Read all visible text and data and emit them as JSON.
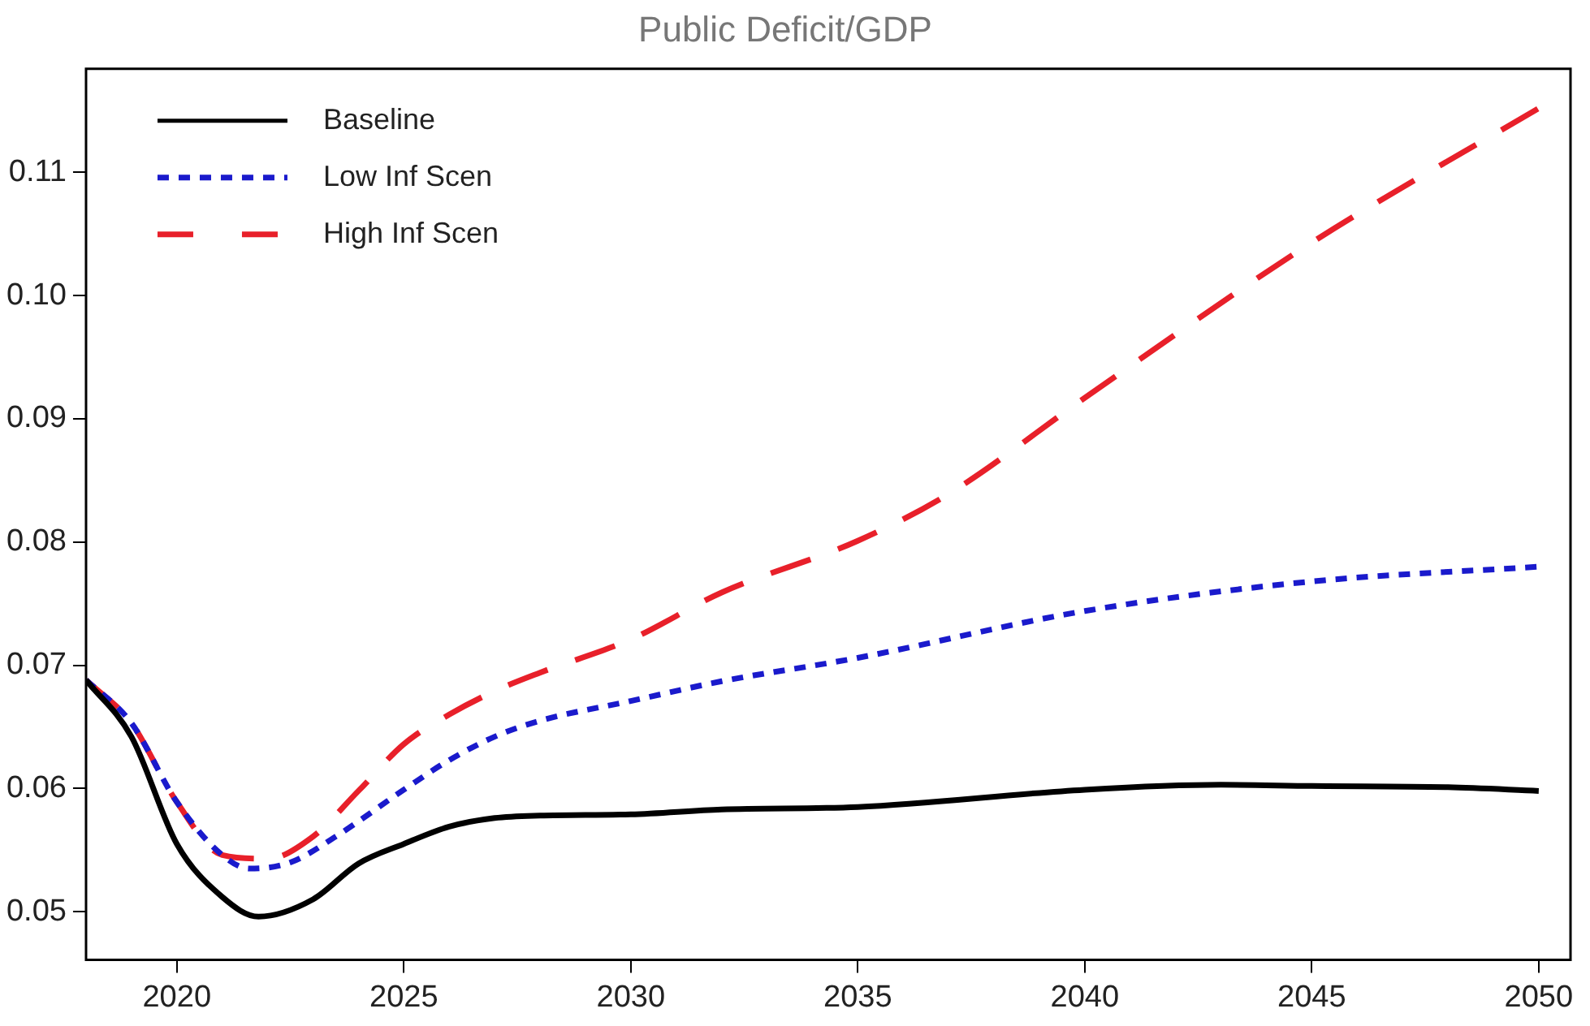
{
  "chart_data": {
    "type": "line",
    "title": "Public Deficit/GDP",
    "xlim": [
      2018,
      2050.7
    ],
    "xticks": [
      2020,
      2025,
      2030,
      2035,
      2040,
      2045,
      2050
    ],
    "ylim": [
      0.0461,
      0.1184
    ],
    "yticks": [
      0.05,
      0.06,
      0.07,
      0.08,
      0.09,
      {
        "value": 0.1,
        "label": "0.10"
      },
      0.11
    ],
    "grid": false,
    "legend": "top left",
    "marker": "none",
    "series": [
      {
        "name": "Baseline",
        "color": "#000000",
        "line_style": "solid",
        "x": [
          2018,
          2019,
          2020,
          2021,
          2021.8,
          2023,
          2024,
          2025,
          2026,
          2027,
          2028,
          2030,
          2032,
          2035,
          2040,
          2043,
          2045,
          2048,
          2050
        ],
        "values": [
          0.0688,
          0.0642,
          0.0555,
          0.0512,
          0.0496,
          0.051,
          0.0539,
          0.0555,
          0.0569,
          0.0576,
          0.0578,
          0.0579,
          0.0583,
          0.0585,
          0.0599,
          0.0603,
          0.0602,
          0.0601,
          0.0598
        ]
      },
      {
        "name": "Low Inf Scen",
        "color": "#1a1acc",
        "line_style": "dotted",
        "x": [
          2018,
          2019,
          2020,
          2021,
          2021.6,
          2022.5,
          2023.5,
          2025,
          2026,
          2027,
          2028,
          2030,
          2032,
          2035,
          2040,
          2045,
          2050
        ],
        "values": [
          0.0688,
          0.0653,
          0.0589,
          0.0546,
          0.0535,
          0.054,
          0.0561,
          0.0599,
          0.0623,
          0.0642,
          0.0655,
          0.0671,
          0.0687,
          0.0706,
          0.0744,
          0.0768,
          0.078
        ]
      },
      {
        "name": "High Inf Scen",
        "color": "#e8202a",
        "line_style": "dashed",
        "x": [
          2018,
          2019,
          2020,
          2021,
          2022,
          2023,
          2024,
          2025,
          2026,
          2027,
          2028,
          2030,
          2032,
          2035,
          2037,
          2040,
          2045,
          2050
        ],
        "values": [
          0.0688,
          0.0653,
          0.0589,
          0.0546,
          0.0543,
          0.0561,
          0.0598,
          0.0636,
          0.066,
          0.0679,
          0.0694,
          0.0721,
          0.0759,
          0.0801,
          0.0839,
          0.0917,
          0.1043,
          0.1152
        ]
      }
    ]
  }
}
